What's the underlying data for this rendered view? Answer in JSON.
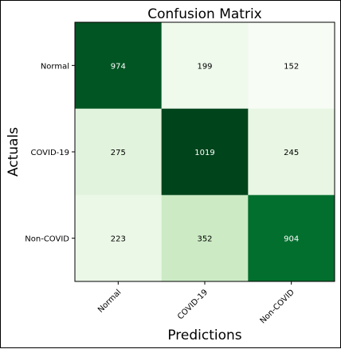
{
  "chart_data": {
    "type": "heatmap",
    "title": "Confusion Matrix",
    "xlabel": "Predictions",
    "ylabel": "Actuals",
    "x_categories": [
      "Normal",
      "COVID-19",
      "Non-COVID"
    ],
    "y_categories": [
      "Normal",
      "COVID-19",
      "Non-COVID"
    ],
    "values": [
      [
        974,
        199,
        152
      ],
      [
        275,
        1019,
        245
      ],
      [
        223,
        352,
        904
      ]
    ],
    "colormap": "Greens",
    "grid": false,
    "colors": {
      "low": "#f7fcf5",
      "high": "#00441b",
      "text_dark": "#000000",
      "text_light": "#ffffff"
    }
  }
}
